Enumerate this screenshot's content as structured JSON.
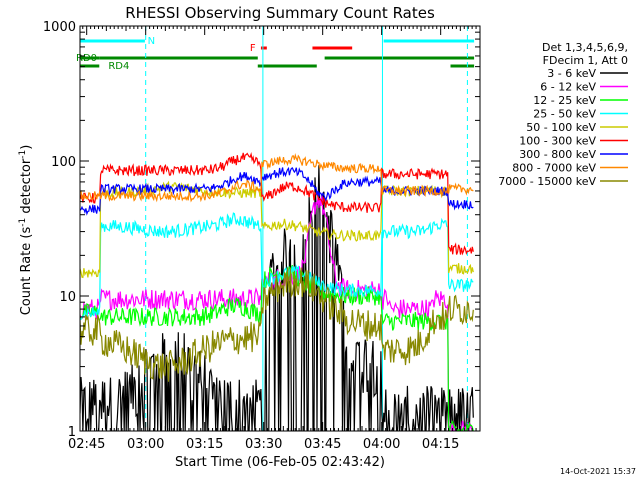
{
  "chart_data": {
    "type": "line",
    "title": "RHESSI Observing Summary Count Rates",
    "xlabel": "Start Time (06-Feb-05 02:43:42)",
    "ylabel_main": "Count Rate (s",
    "ylabel_sup1": "-1",
    "ylabel_mid": " detector",
    "ylabel_sup2": "-1",
    "ylabel_end": ")",
    "timestamp": "14-Oct-2021 15:37",
    "y_scale": "log",
    "ylim": [
      1,
      1000
    ],
    "xlim_minutes": [
      -1.7,
      100
    ],
    "x_ticks": [
      {
        "t": 0,
        "label": "02:45"
      },
      {
        "t": 15,
        "label": "03:00"
      },
      {
        "t": 30,
        "label": "03:15"
      },
      {
        "t": 45,
        "label": "03:30"
      },
      {
        "t": 60,
        "label": "03:45"
      },
      {
        "t": 75,
        "label": "04:00"
      },
      {
        "t": 90,
        "label": "04:15"
      }
    ],
    "y_ticks": [
      {
        "v": 1,
        "label": "1"
      },
      {
        "v": 10,
        "label": "10"
      },
      {
        "v": 100,
        "label": "100"
      },
      {
        "v": 1000,
        "label": "1000"
      }
    ],
    "legend": {
      "header1": "Det 1,3,4,5,6,9,",
      "header2": "FDecim 1, Att 0",
      "placement": "right"
    },
    "flags": {
      "N_label": "N",
      "F_label": "F",
      "RD0_label": "RD0",
      "RD4_label": "RD4"
    },
    "series": [
      {
        "name": "3 - 6 keV",
        "color": "#000000"
      },
      {
        "name": "6 - 12 keV",
        "color": "#ff00ff"
      },
      {
        "name": "12 - 25 keV",
        "color": "#00ff00"
      },
      {
        "name": "25 - 50 keV",
        "color": "#00ffff"
      },
      {
        "name": "50 - 100 keV",
        "color": "#cccc00"
      },
      {
        "name": "100 - 300 keV",
        "color": "#ff0000"
      },
      {
        "name": "300 - 800 keV",
        "color": "#0000ff"
      },
      {
        "name": "800 - 7000 keV",
        "color": "#ff8800"
      },
      {
        "name": "7000 - 15000 keV",
        "color": "#888800"
      }
    ]
  }
}
